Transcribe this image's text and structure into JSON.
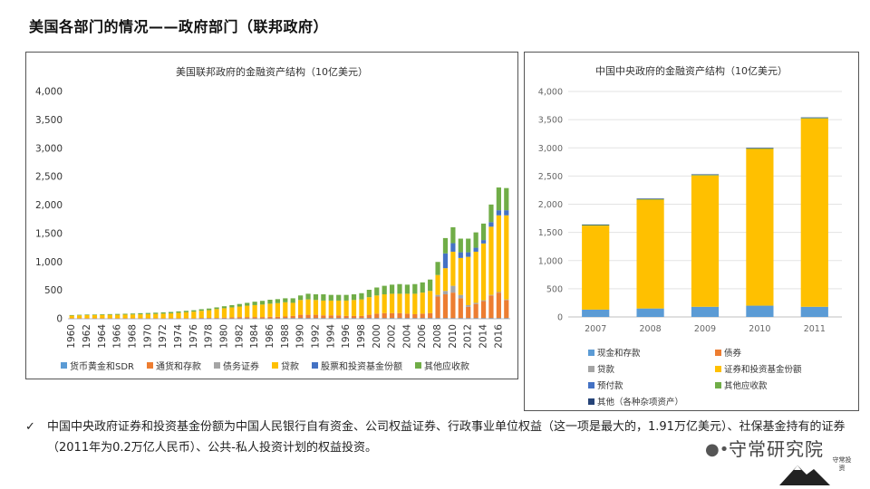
{
  "page": {
    "title": "美国各部门的情况——政府部门（联邦政府）"
  },
  "colors": {
    "blue": "#5B9BD5",
    "orange": "#ED7D31",
    "gray": "#A5A5A5",
    "gold": "#FFC000",
    "navy": "#4472C4",
    "green": "#70AD47",
    "darkblue": "#264478"
  },
  "chart_data": [
    {
      "type": "bar",
      "stacked": true,
      "title": "美国联邦政府的金融资产结构（10亿美元）",
      "ylim": [
        0,
        4000
      ],
      "yticks": [
        "0",
        "500",
        "1,000",
        "1,500",
        "2,000",
        "2,500",
        "3,000",
        "3,500",
        "4,000"
      ],
      "categories": [
        "1960",
        "1961",
        "1962",
        "1963",
        "1964",
        "1965",
        "1966",
        "1967",
        "1968",
        "1969",
        "1970",
        "1971",
        "1972",
        "1973",
        "1974",
        "1975",
        "1976",
        "1977",
        "1978",
        "1979",
        "1980",
        "1981",
        "1982",
        "1983",
        "1984",
        "1985",
        "1986",
        "1987",
        "1988",
        "1989",
        "1990",
        "1991",
        "1992",
        "1993",
        "1994",
        "1995",
        "1996",
        "1997",
        "1998",
        "1999",
        "2000",
        "2001",
        "2002",
        "2003",
        "2004",
        "2005",
        "2006",
        "2007",
        "2008",
        "2009",
        "2010",
        "2011",
        "2012",
        "2013",
        "2014",
        "2015",
        "2016",
        "2017"
      ],
      "tick_labels": [
        "1960",
        "1962",
        "1964",
        "1966",
        "1968",
        "1970",
        "1972",
        "1974",
        "1976",
        "1978",
        "1980",
        "1982",
        "1984",
        "1986",
        "1988",
        "1990",
        "1992",
        "1994",
        "1996",
        "1998",
        "2000",
        "2002",
        "2004",
        "2006",
        "2008",
        "2010",
        "2012",
        "2014",
        "2016"
      ],
      "series": [
        {
          "name": "货币黄金和SDR",
          "color": "#5B9BD5",
          "values": [
            5,
            5,
            5,
            5,
            5,
            5,
            5,
            5,
            5,
            5,
            5,
            5,
            5,
            5,
            5,
            5,
            5,
            5,
            5,
            5,
            5,
            5,
            5,
            5,
            5,
            5,
            5,
            5,
            10,
            10,
            10,
            10,
            10,
            10,
            10,
            10,
            10,
            10,
            10,
            10,
            10,
            10,
            10,
            10,
            10,
            10,
            10,
            10,
            10,
            10,
            10,
            10,
            10,
            10,
            10,
            10,
            10,
            10
          ]
        },
        {
          "name": "通货和存款",
          "color": "#ED7D31",
          "values": [
            5,
            5,
            5,
            5,
            5,
            5,
            5,
            5,
            5,
            5,
            5,
            5,
            5,
            5,
            5,
            5,
            5,
            10,
            10,
            10,
            15,
            20,
            25,
            25,
            25,
            25,
            30,
            30,
            30,
            40,
            60,
            60,
            60,
            50,
            50,
            50,
            40,
            40,
            40,
            60,
            80,
            90,
            90,
            90,
            80,
            70,
            80,
            90,
            380,
            420,
            450,
            350,
            200,
            250,
            300,
            400,
            450,
            320
          ]
        },
        {
          "name": "债务证券",
          "color": "#A5A5A5",
          "values": [
            0,
            0,
            0,
            0,
            0,
            0,
            0,
            0,
            0,
            0,
            0,
            0,
            0,
            0,
            0,
            0,
            0,
            0,
            0,
            0,
            0,
            0,
            0,
            0,
            0,
            0,
            0,
            0,
            0,
            0,
            0,
            0,
            0,
            0,
            0,
            0,
            0,
            0,
            0,
            0,
            0,
            0,
            0,
            0,
            0,
            0,
            0,
            0,
            30,
            60,
            120,
            60,
            30,
            20,
            15,
            10,
            10,
            10
          ]
        },
        {
          "name": "贷款",
          "color": "#FFC000",
          "values": [
            45,
            50,
            55,
            55,
            58,
            60,
            60,
            63,
            65,
            68,
            72,
            75,
            80,
            85,
            95,
            105,
            115,
            125,
            135,
            155,
            165,
            175,
            185,
            200,
            210,
            220,
            230,
            240,
            250,
            230,
            260,
            270,
            260,
            260,
            260,
            260,
            270,
            280,
            290,
            310,
            320,
            330,
            340,
            340,
            350,
            360,
            370,
            390,
            350,
            400,
            600,
            650,
            850,
            900,
            1000,
            1200,
            1350,
            1480
          ]
        },
        {
          "name": "股票和投资基金份额",
          "color": "#4472C4",
          "values": [
            0,
            0,
            0,
            0,
            0,
            0,
            0,
            0,
            0,
            0,
            0,
            0,
            0,
            0,
            0,
            0,
            0,
            0,
            0,
            0,
            0,
            0,
            0,
            0,
            0,
            0,
            0,
            0,
            0,
            0,
            0,
            0,
            0,
            0,
            0,
            0,
            0,
            0,
            0,
            0,
            0,
            0,
            0,
            0,
            0,
            0,
            0,
            0,
            0,
            260,
            150,
            100,
            80,
            70,
            60,
            80,
            90,
            90
          ]
        },
        {
          "name": "其他应收款",
          "color": "#70AD47",
          "values": [
            10,
            10,
            10,
            10,
            12,
            12,
            15,
            15,
            17,
            20,
            20,
            22,
            23,
            25,
            25,
            25,
            25,
            28,
            30,
            30,
            35,
            40,
            45,
            50,
            60,
            65,
            70,
            70,
            70,
            80,
            80,
            100,
            100,
            110,
            100,
            100,
            100,
            100,
            110,
            130,
            140,
            150,
            160,
            170,
            160,
            170,
            180,
            200,
            230,
            270,
            280,
            240,
            240,
            270,
            290,
            310,
            400,
            390
          ]
        }
      ]
    },
    {
      "type": "bar",
      "stacked": true,
      "title": "中国中央政府的金融资产结构（10亿美元）",
      "ylim": [
        0,
        4000
      ],
      "yticks": [
        "0",
        "500",
        "1,000",
        "1,500",
        "2,000",
        "2,500",
        "3,000",
        "3,500",
        "4,000"
      ],
      "categories": [
        "2007",
        "2008",
        "2009",
        "2010",
        "2011"
      ],
      "series": [
        {
          "name": "现金和存款",
          "color": "#5B9BD5",
          "values": [
            130,
            150,
            180,
            200,
            180
          ]
        },
        {
          "name": "债券",
          "color": "#ED7D31",
          "values": [
            0,
            0,
            0,
            0,
            0
          ]
        },
        {
          "name": "贷款",
          "color": "#A5A5A5",
          "values": [
            0,
            0,
            0,
            0,
            0
          ]
        },
        {
          "name": "证券和投资基金份额",
          "color": "#FFC000",
          "values": [
            1490,
            1930,
            2330,
            2780,
            3340
          ]
        },
        {
          "name": "预付款",
          "color": "#4472C4",
          "values": [
            0,
            0,
            0,
            0,
            0
          ]
        },
        {
          "name": "其他应收款",
          "color": "#70AD47",
          "values": [
            10,
            10,
            10,
            10,
            10
          ]
        },
        {
          "name": "其他（各种杂项资产）",
          "color": "#264478",
          "values": [
            10,
            10,
            10,
            10,
            10
          ]
        }
      ]
    }
  ],
  "note": {
    "check_icon": "✓",
    "text": "中国中央政府证券和投资基金份额为中国人民银行自有资金、公司权益证券、行政事业单位权益（这一项是最大的，1.91万亿美元）、社保基金持有的证券（2011年为0.2万亿人民币）、公共-私人投资计划的权益投资。"
  },
  "logo": {
    "text": "守常研究院",
    "seal_text": "守常投资"
  }
}
